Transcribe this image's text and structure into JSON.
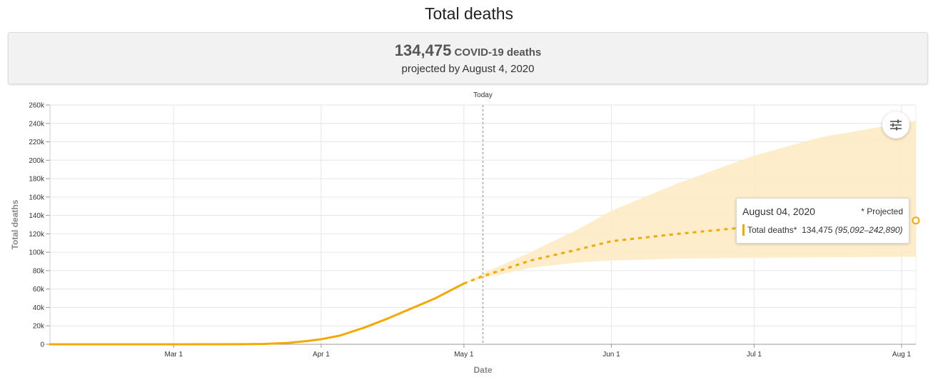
{
  "header": {
    "title": "Total deaths"
  },
  "summary": {
    "number": "134,475",
    "unit": "COVID-19 deaths",
    "subtitle": "projected by August 4, 2020"
  },
  "colors": {
    "line": "#f5a800",
    "band": "#fdebc4",
    "grid": "#e6e6e6"
  },
  "icons": {
    "settings": "sliders-icon"
  },
  "tooltip": {
    "date": "August 04, 2020",
    "note": "* Projected",
    "label": "Total deaths*",
    "value": "134,475",
    "range": "(95,092–242,890)"
  },
  "chart_data": {
    "type": "line",
    "title": "",
    "xlabel": "Date",
    "ylabel": "Total deaths",
    "ylim": [
      0,
      260000
    ],
    "xlim": [
      "2020-02-04",
      "2020-08-04"
    ],
    "yticks": [
      0,
      20000,
      40000,
      60000,
      80000,
      100000,
      120000,
      140000,
      160000,
      180000,
      200000,
      220000,
      240000,
      260000
    ],
    "ytick_labels": [
      "0",
      "20k",
      "40k",
      "60k",
      "80k",
      "100k",
      "120k",
      "140k",
      "160k",
      "180k",
      "200k",
      "220k",
      "240k",
      "260k"
    ],
    "xticks": [
      "2020-03-01",
      "2020-04-01",
      "2020-05-01",
      "2020-06-01",
      "2020-07-01",
      "2020-08-01"
    ],
    "xtick_labels": [
      "Mar 1",
      "Apr 1",
      "May 1",
      "Jun 1",
      "Jul 1",
      "Aug 1"
    ],
    "today": {
      "date": "2020-05-05",
      "label": "Today"
    },
    "grid": true,
    "series": [
      {
        "name": "Total deaths",
        "style": "solid",
        "points": [
          [
            "2020-02-04",
            0
          ],
          [
            "2020-03-01",
            0
          ],
          [
            "2020-03-15",
            100
          ],
          [
            "2020-03-20",
            400
          ],
          [
            "2020-03-25",
            1500
          ],
          [
            "2020-03-29",
            3500
          ],
          [
            "2020-04-01",
            5500
          ],
          [
            "2020-04-05",
            9500
          ],
          [
            "2020-04-10",
            18000
          ],
          [
            "2020-04-15",
            28000
          ],
          [
            "2020-04-20",
            39000
          ],
          [
            "2020-04-25",
            50000
          ],
          [
            "2020-05-01",
            66000
          ]
        ]
      },
      {
        "name": "Total deaths*",
        "style": "dashed",
        "points": [
          [
            "2020-05-01",
            66000
          ],
          [
            "2020-05-05",
            74000
          ],
          [
            "2020-05-15",
            91000
          ],
          [
            "2020-05-25",
            103000
          ],
          [
            "2020-06-01",
            112000
          ],
          [
            "2020-06-15",
            120000
          ],
          [
            "2020-07-01",
            128000
          ],
          [
            "2020-07-15",
            131500
          ],
          [
            "2020-08-04",
            134475
          ]
        ]
      }
    ],
    "uncertainty_band": {
      "points": [
        [
          "2020-05-01",
          66000,
          66000
        ],
        [
          "2020-05-05",
          72000,
          77000
        ],
        [
          "2020-05-15",
          83000,
          100000
        ],
        [
          "2020-05-25",
          89000,
          125000
        ],
        [
          "2020-06-01",
          91000,
          145000
        ],
        [
          "2020-06-15",
          93000,
          175000
        ],
        [
          "2020-07-01",
          94000,
          205000
        ],
        [
          "2020-07-15",
          94500,
          225000
        ],
        [
          "2020-08-04",
          95092,
          242890
        ]
      ]
    },
    "highlight": {
      "date": "2020-08-04",
      "value": 134475,
      "lower": 95092,
      "upper": 242890
    }
  }
}
